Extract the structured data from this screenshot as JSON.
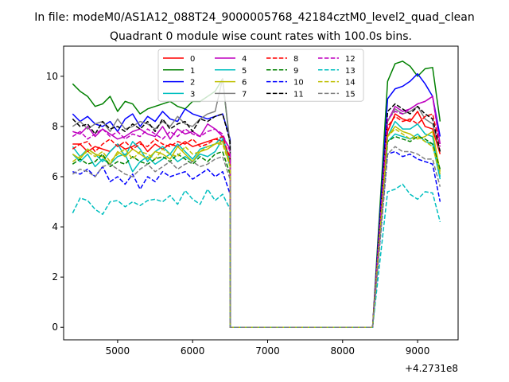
{
  "chart_data": {
    "type": "line",
    "suptitle": "In file: modeM0/AS1A12_088T24_9000005768_42184cztM0_level2_quad_clean",
    "title": "Quadrant 0 module wise count rates with 100.0s bins.",
    "xlabel": "",
    "ylabel": "",
    "offset_label": "+4.2731e8",
    "xlim": [
      4280,
      9540
    ],
    "ylim": [
      -0.5,
      11.2
    ],
    "x_ticks": [
      5000,
      6000,
      7000,
      8000,
      9000
    ],
    "x_tick_labels": [
      "5000",
      "6000",
      "7000",
      "8000",
      "9000"
    ],
    "y_ticks": [
      0,
      2,
      4,
      6,
      8,
      10
    ],
    "y_tick_labels": [
      "0",
      "2",
      "4",
      "6",
      "8",
      "10"
    ],
    "grid": false,
    "legend_placement": "top-center",
    "legend_columns": 4,
    "x_segment_a": {
      "start": 4400,
      "step": 100,
      "count": 22
    },
    "x_segment_b": {
      "start": 8600,
      "step": 100,
      "count": 8
    },
    "gap_zero": [
      6500,
      8400
    ],
    "series": [
      {
        "name": "0",
        "color": "#ff0000",
        "dash": "solid",
        "a": [
          7.3,
          7.3,
          7.0,
          7.2,
          7.1,
          7.0,
          7.3,
          7.1,
          7.2,
          7.4,
          7.0,
          7.3,
          7.1,
          7.3,
          7.2,
          7.4,
          7.2,
          7.3,
          7.4,
          7.5,
          7.4,
          6.8
        ],
        "b": [
          7.8,
          8.5,
          8.3,
          8.2,
          8.6,
          8.0,
          7.9,
          6.9
        ]
      },
      {
        "name": "1",
        "color": "#008000",
        "dash": "solid",
        "a": [
          9.7,
          9.4,
          9.2,
          8.8,
          8.9,
          9.2,
          8.6,
          9.0,
          8.9,
          8.5,
          8.7,
          8.8,
          8.9,
          9.0,
          8.8,
          8.7,
          9.0,
          9.0,
          9.2,
          9.4,
          9.9,
          7.2
        ],
        "b": [
          9.8,
          10.5,
          10.6,
          10.4,
          10.0,
          10.3,
          10.35,
          8.2
        ]
      },
      {
        "name": "2",
        "color": "#0000ff",
        "dash": "solid",
        "a": [
          8.5,
          8.2,
          8.4,
          8.1,
          8.0,
          8.2,
          7.8,
          8.3,
          8.5,
          8.0,
          8.4,
          8.2,
          8.6,
          8.3,
          8.2,
          8.7,
          8.5,
          8.4,
          8.3,
          8.4,
          8.5,
          7.5
        ],
        "b": [
          9.1,
          9.5,
          9.6,
          9.8,
          10.1,
          9.7,
          9.2,
          7.6
        ]
      },
      {
        "name": "3",
        "color": "#00bfbf",
        "dash": "solid",
        "a": [
          7.2,
          6.8,
          7.1,
          6.9,
          6.6,
          7.0,
          7.3,
          6.8,
          7.4,
          7.1,
          6.6,
          7.0,
          7.2,
          6.9,
          7.3,
          7.0,
          6.7,
          7.1,
          7.2,
          7.3,
          7.6,
          6.6
        ],
        "b": [
          7.6,
          8.2,
          7.9,
          7.9,
          8.1,
          7.7,
          7.6,
          6.0
        ]
      },
      {
        "name": "4",
        "color": "#bf00bf",
        "dash": "solid",
        "a": [
          7.8,
          7.7,
          8.0,
          7.6,
          7.9,
          7.7,
          7.5,
          7.6,
          7.8,
          7.9,
          7.7,
          7.6,
          8.0,
          7.5,
          7.9,
          7.7,
          7.8,
          7.6,
          8.1,
          7.9,
          7.6,
          7.1
        ],
        "b": [
          8.2,
          8.8,
          8.6,
          8.7,
          8.9,
          9.0,
          9.2,
          7.3
        ]
      },
      {
        "name": "5",
        "color": "#00bfbf",
        "dash": "solid",
        "a": [
          6.9,
          6.6,
          6.9,
          6.4,
          6.7,
          6.5,
          6.8,
          6.9,
          6.2,
          6.6,
          6.8,
          6.5,
          6.7,
          6.9,
          6.6,
          6.8,
          6.6,
          6.9,
          6.8,
          7.0,
          7.5,
          6.4
        ],
        "b": [
          7.4,
          7.7,
          7.6,
          7.5,
          7.7,
          7.4,
          7.3,
          5.9
        ]
      },
      {
        "name": "6",
        "color": "#bfbf00",
        "dash": "solid",
        "a": [
          6.9,
          6.7,
          7.1,
          6.9,
          6.8,
          6.5,
          7.0,
          6.8,
          7.1,
          6.9,
          6.7,
          7.0,
          6.9,
          6.7,
          7.2,
          6.9,
          6.6,
          7.0,
          7.1,
          7.3,
          7.4,
          6.5
        ],
        "b": [
          7.6,
          8.0,
          7.8,
          7.7,
          7.5,
          7.6,
          7.8,
          6.2
        ]
      },
      {
        "name": "7",
        "color": "#808080",
        "dash": "solid",
        "a": [
          8.0,
          8.2,
          7.9,
          8.1,
          8.2,
          7.8,
          8.3,
          7.9,
          8.0,
          8.2,
          8.1,
          7.9,
          8.2,
          8.0,
          8.4,
          8.1,
          8.0,
          8.3,
          8.5,
          8.6,
          9.9,
          7.3
        ],
        "b": [
          8.2,
          8.7,
          8.5,
          8.6,
          8.8,
          8.3,
          8.1,
          7.0
        ]
      },
      {
        "name": "8",
        "color": "#ff0000",
        "dash": "dashed",
        "a": [
          7.1,
          7.3,
          7.4,
          7.0,
          7.3,
          7.5,
          7.2,
          7.4,
          7.1,
          7.3,
          7.2,
          7.5,
          7.3,
          7.2,
          7.4,
          7.3,
          7.5,
          7.2,
          7.3,
          7.5,
          7.6,
          6.7
        ],
        "b": [
          8.0,
          8.4,
          8.2,
          8.3,
          8.1,
          8.4,
          8.5,
          7.2
        ]
      },
      {
        "name": "9",
        "color": "#008000",
        "dash": "dashed",
        "a": [
          6.5,
          6.7,
          6.5,
          6.6,
          6.9,
          6.4,
          6.6,
          6.5,
          6.8,
          6.6,
          6.5,
          6.7,
          6.8,
          6.6,
          6.9,
          6.7,
          6.5,
          6.8,
          6.6,
          6.9,
          7.0,
          6.1
        ],
        "b": [
          7.4,
          7.6,
          7.5,
          7.4,
          7.6,
          7.5,
          7.3,
          6.3
        ]
      },
      {
        "name": "10",
        "color": "#0000ff",
        "dash": "dashed",
        "a": [
          6.2,
          6.1,
          6.3,
          6.0,
          6.4,
          5.8,
          6.0,
          5.7,
          6.1,
          5.5,
          6.0,
          5.8,
          6.2,
          6.0,
          6.1,
          6.2,
          5.9,
          6.1,
          6.3,
          6.0,
          6.2,
          5.3
        ],
        "b": [
          6.9,
          7.0,
          6.8,
          6.9,
          6.7,
          6.6,
          6.5,
          5.0
        ]
      },
      {
        "name": "11",
        "color": "#000000",
        "dash": "dashed",
        "a": [
          8.3,
          8.0,
          8.1,
          7.7,
          8.2,
          7.9,
          8.0,
          7.8,
          8.1,
          7.9,
          8.2,
          7.8,
          8.3,
          7.9,
          8.1,
          8.2,
          7.8,
          8.3,
          8.2,
          8.4,
          8.5,
          7.4
        ],
        "b": [
          8.6,
          8.9,
          8.7,
          8.5,
          8.8,
          8.5,
          8.3,
          7.0
        ]
      },
      {
        "name": "12",
        "color": "#bf00bf",
        "dash": "dashed",
        "a": [
          7.6,
          7.8,
          7.5,
          7.7,
          7.9,
          7.6,
          7.8,
          7.5,
          7.7,
          7.6,
          7.9,
          7.7,
          7.5,
          7.8,
          7.6,
          7.9,
          7.7,
          7.6,
          7.8,
          7.9,
          7.7,
          7.0
        ],
        "b": [
          8.3,
          8.6,
          8.5,
          8.7,
          8.9,
          9.0,
          9.2,
          7.2
        ]
      },
      {
        "name": "13",
        "color": "#00bfbf",
        "dash": "dashed",
        "a": [
          4.55,
          5.15,
          5.05,
          4.7,
          4.5,
          5.0,
          5.05,
          4.8,
          5.0,
          4.85,
          5.05,
          5.1,
          5.0,
          5.25,
          4.9,
          5.45,
          5.1,
          4.9,
          5.5,
          5.05,
          5.3,
          4.7
        ],
        "b": [
          5.4,
          5.5,
          5.7,
          5.3,
          5.1,
          5.4,
          5.35,
          4.2
        ]
      },
      {
        "name": "14",
        "color": "#bfbf00",
        "dash": "dashed",
        "a": [
          6.6,
          6.8,
          7.0,
          6.8,
          7.0,
          6.6,
          6.9,
          7.1,
          6.7,
          7.0,
          6.9,
          6.7,
          7.1,
          6.9,
          6.8,
          7.2,
          6.9,
          7.0,
          7.2,
          7.3,
          7.3,
          6.4
        ],
        "b": [
          7.6,
          7.9,
          7.7,
          7.5,
          7.6,
          7.4,
          7.2,
          6.1
        ]
      },
      {
        "name": "15",
        "color": "#808080",
        "dash": "dashed",
        "a": [
          6.1,
          6.3,
          6.2,
          6.0,
          6.4,
          6.5,
          6.3,
          6.1,
          6.0,
          6.3,
          6.5,
          6.2,
          6.4,
          6.6,
          6.3,
          6.5,
          6.6,
          6.4,
          6.5,
          6.7,
          6.8,
          5.9
        ],
        "b": [
          6.9,
          7.2,
          7.0,
          7.0,
          6.9,
          6.7,
          6.7,
          5.6
        ]
      }
    ]
  }
}
